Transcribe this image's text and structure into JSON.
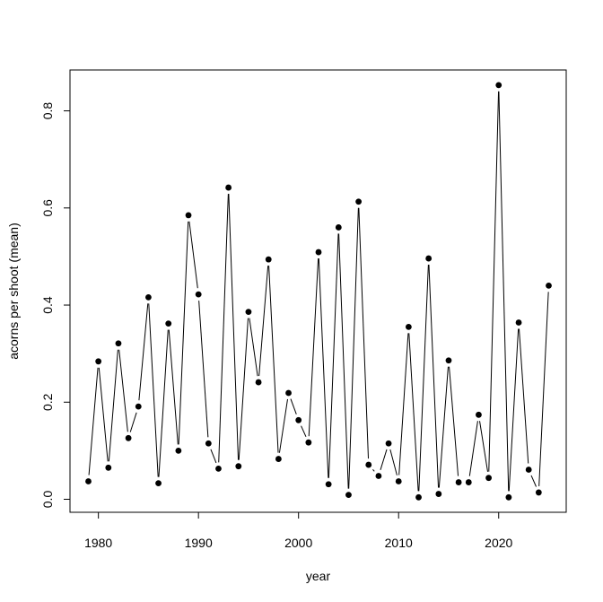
{
  "chart_data": {
    "type": "line",
    "title": "",
    "xlabel": "year",
    "ylabel": "acorns per shoot (mean)",
    "xlim": [
      1979,
      2025
    ],
    "ylim": [
      0,
      0.85
    ],
    "x_ticks": [
      1980,
      1990,
      2000,
      2010,
      2020
    ],
    "y_ticks": [
      0.0,
      0.2,
      0.4,
      0.6,
      0.8
    ],
    "x_tick_labels": [
      "1980",
      "1990",
      "2000",
      "2010",
      "2020"
    ],
    "y_tick_labels": [
      "0.0",
      "0.2",
      "0.4",
      "0.6",
      "0.8"
    ],
    "grid": false,
    "marker": "filled-circle",
    "line_color": "#000000",
    "marker_color": "#000000",
    "series": [
      {
        "x": [
          1979,
          1980,
          1981,
          1982,
          1983,
          1984,
          1985,
          1986,
          1987,
          1988,
          1989,
          1990,
          1991,
          1992,
          1993,
          1994,
          1995,
          1996,
          1997,
          1998,
          1999,
          2000,
          2001,
          2002,
          2003,
          2004,
          2005,
          2006,
          2007,
          2008,
          2009,
          2010,
          2011,
          2012,
          2013,
          2014,
          2015,
          2016,
          2017,
          2018,
          2019,
          2020,
          2021,
          2022,
          2023,
          2024,
          2025
        ],
        "y": [
          0.037,
          0.284,
          0.065,
          0.321,
          0.126,
          0.191,
          0.416,
          0.033,
          0.362,
          0.1,
          0.585,
          0.422,
          0.115,
          0.063,
          0.642,
          0.068,
          0.386,
          0.241,
          0.494,
          0.083,
          0.219,
          0.163,
          0.117,
          0.509,
          0.031,
          0.56,
          0.009,
          0.613,
          0.071,
          0.048,
          0.115,
          0.037,
          0.355,
          0.004,
          0.496,
          0.011,
          0.286,
          0.035,
          0.035,
          0.174,
          0.044,
          0.853,
          0.004,
          0.364,
          0.061,
          0.014,
          0.44
        ]
      }
    ]
  }
}
